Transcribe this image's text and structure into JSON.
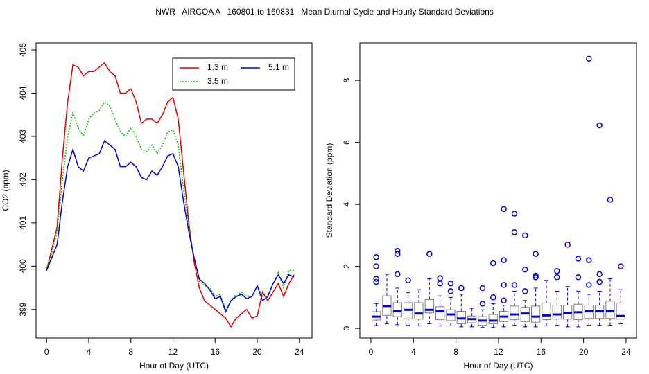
{
  "title": "NWR   AIRCOA A   160801 to 160831   Mean Diurnal Cycle and Hourly Standard Deviations",
  "chart_data": [
    {
      "type": "line",
      "xlabel": "Hour of Day (UTC)",
      "ylabel": "CO2 (ppm)",
      "x": [
        0,
        0.5,
        1,
        1.5,
        2,
        2.5,
        3,
        3.5,
        4,
        4.5,
        5,
        5.5,
        6,
        6.5,
        7,
        7.5,
        8,
        8.5,
        9,
        9.5,
        10,
        10.5,
        11,
        11.5,
        12,
        12.5,
        13,
        13.5,
        14,
        14.5,
        15,
        15.5,
        16,
        16.5,
        17,
        17.5,
        18,
        18.5,
        19,
        19.5,
        20,
        20.5,
        21,
        21.5,
        22,
        22.5,
        23,
        23.5
      ],
      "series": [
        {
          "name": "1.3 m",
          "color": "#e00000",
          "linestyle": "solid",
          "values": [
            399.9,
            400.4,
            400.9,
            402.5,
            403.8,
            404.65,
            404.6,
            404.4,
            404.5,
            404.5,
            404.6,
            404.7,
            404.5,
            404.4,
            404.0,
            404.0,
            404.1,
            403.8,
            403.3,
            403.4,
            403.4,
            403.3,
            403.5,
            403.8,
            403.9,
            403.4,
            402.2,
            401.0,
            400.1,
            399.5,
            399.2,
            399.1,
            399.0,
            398.9,
            398.8,
            398.6,
            398.8,
            398.9,
            399.0,
            398.8,
            398.85,
            399.4,
            399.2,
            399.4,
            399.6,
            399.3,
            399.6,
            399.8
          ]
        },
        {
          "name": "3.5 m",
          "color": "#00c000",
          "linestyle": "dotted",
          "values": [
            399.95,
            400.3,
            400.8,
            402.0,
            403.0,
            403.55,
            403.2,
            403.0,
            403.4,
            403.55,
            403.6,
            403.8,
            403.7,
            403.4,
            403.1,
            403.0,
            403.2,
            403.0,
            402.7,
            402.65,
            402.8,
            402.6,
            402.8,
            403.1,
            403.15,
            402.8,
            401.8,
            400.9,
            400.2,
            399.65,
            399.55,
            399.5,
            399.3,
            399.35,
            399.0,
            399.2,
            399.35,
            399.4,
            399.3,
            399.3,
            399.55,
            399.3,
            399.3,
            399.6,
            399.85,
            399.5,
            399.9,
            399.9
          ]
        },
        {
          "name": "5.1 m",
          "color": "#0000d0",
          "linestyle": "solid",
          "values": [
            399.9,
            400.2,
            400.5,
            401.5,
            402.3,
            402.7,
            402.3,
            402.2,
            402.5,
            402.55,
            402.6,
            402.9,
            402.8,
            402.7,
            402.3,
            402.3,
            402.4,
            402.3,
            402.05,
            402.0,
            402.2,
            402.1,
            402.3,
            402.55,
            402.6,
            402.3,
            401.5,
            400.8,
            400.2,
            399.7,
            399.6,
            399.45,
            399.25,
            399.3,
            398.95,
            399.2,
            399.3,
            399.35,
            399.25,
            399.3,
            399.55,
            399.2,
            399.3,
            399.6,
            399.8,
            399.6,
            399.8,
            399.75
          ]
        }
      ],
      "xlim": [
        -1,
        25.2
      ],
      "xticks": [
        0,
        4,
        8,
        12,
        16,
        20,
        24
      ],
      "ylim": [
        398.34,
        405.16
      ],
      "yticks": [
        399,
        400,
        401,
        402,
        403,
        404,
        405
      ],
      "legend": "topright"
    },
    {
      "type": "boxplot",
      "xlabel": "Hour of Day (UTC)",
      "ylabel": "Standard Deviation (ppm)",
      "color": "#0000d0",
      "box_color": "#808080",
      "x": [
        0.5,
        1.5,
        2.5,
        3.5,
        4.5,
        5.5,
        6.5,
        7.5,
        8.5,
        9.5,
        10.5,
        11.5,
        12.5,
        13.5,
        14.5,
        15.5,
        16.5,
        17.5,
        18.5,
        19.5,
        20.5,
        21.5,
        22.5,
        23.5
      ],
      "low": [
        0.09,
        0.15,
        0.12,
        0.1,
        0.08,
        0.15,
        0.08,
        0.08,
        0.05,
        0.05,
        0.03,
        0.03,
        0.05,
        0.1,
        0.05,
        0.05,
        0.08,
        0.1,
        0.05,
        0.05,
        0.1,
        0.1,
        0.1,
        0.15
      ],
      "q1": [
        0.27,
        0.42,
        0.38,
        0.31,
        0.3,
        0.5,
        0.28,
        0.25,
        0.15,
        0.18,
        0.1,
        0.15,
        0.22,
        0.28,
        0.22,
        0.2,
        0.28,
        0.3,
        0.3,
        0.28,
        0.32,
        0.32,
        0.32,
        0.3
      ],
      "median": [
        0.38,
        0.72,
        0.55,
        0.6,
        0.48,
        0.6,
        0.55,
        0.45,
        0.32,
        0.3,
        0.25,
        0.25,
        0.38,
        0.45,
        0.48,
        0.38,
        0.42,
        0.45,
        0.5,
        0.52,
        0.55,
        0.55,
        0.55,
        0.4
      ],
      "q3": [
        0.54,
        1.05,
        0.83,
        0.83,
        0.83,
        0.93,
        0.7,
        0.6,
        0.55,
        0.4,
        0.38,
        0.45,
        0.55,
        0.72,
        0.68,
        0.72,
        0.82,
        0.75,
        0.75,
        0.78,
        0.75,
        0.75,
        0.88,
        0.82
      ],
      "high": [
        0.8,
        1.75,
        1.3,
        1.15,
        1.25,
        1.6,
        1.05,
        1.0,
        1.1,
        0.65,
        0.6,
        0.8,
        0.75,
        1.2,
        0.9,
        1.3,
        1.55,
        1.2,
        1.35,
        1.2,
        1.1,
        1.2,
        1.6,
        1.25
      ],
      "outliers": [
        [
          2.3,
          2.0,
          1.6,
          1.5
        ],
        [],
        [
          2.5,
          2.4,
          1.75
        ],
        [
          1.55
        ],
        [],
        [
          2.4
        ],
        [
          1.62,
          1.45
        ],
        [
          1.45,
          1.2
        ],
        [
          1.3
        ],
        [],
        [
          1.3,
          0.8
        ],
        [
          2.1,
          1.0
        ],
        [
          3.85,
          2.2,
          1.4,
          0.9
        ],
        [
          3.7,
          3.1,
          1.4
        ],
        [
          3.0,
          1.9,
          1.2
        ],
        [
          2.4,
          1.7,
          1.65
        ],
        [],
        [
          1.85,
          1.65
        ],
        [
          2.7
        ],
        [
          2.25,
          1.65
        ],
        [
          8.7,
          2.2,
          1.4
        ],
        [
          6.55,
          1.75,
          1.5
        ],
        [
          4.15
        ],
        [
          2.0
        ]
      ],
      "xlim": [
        -1.04,
        24.98
      ],
      "xticks": [
        0,
        4,
        8,
        12,
        16,
        20,
        24
      ],
      "ylim": [
        -0.31,
        9.21
      ],
      "yticks": [
        0,
        2,
        4,
        6,
        8
      ]
    }
  ]
}
